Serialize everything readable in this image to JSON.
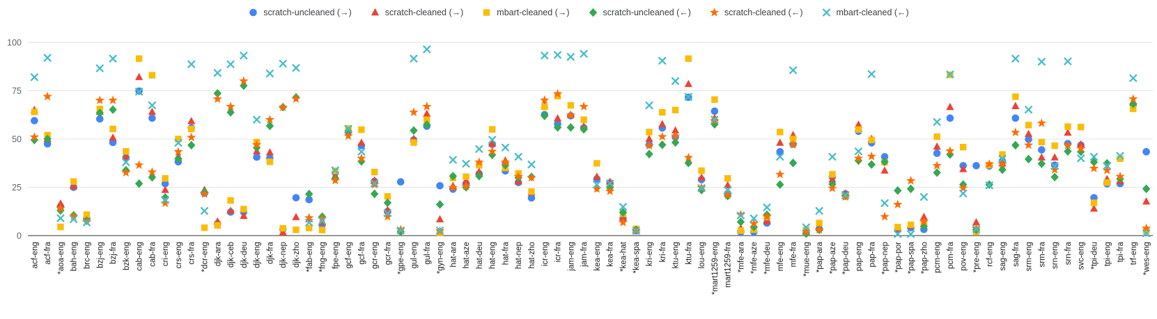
{
  "chart_data": {
    "type": "scatter",
    "title": "",
    "xlabel": "",
    "ylabel": "",
    "ylim": [
      0,
      100
    ],
    "yticks": [
      0,
      25,
      50,
      75,
      100
    ],
    "grid": true,
    "legend_position": "top",
    "categories": [
      "acf-eng",
      "acf-fra",
      "*aoa-eng",
      "bah-eng",
      "brc-eng",
      "bzj-eng",
      "bzj-fra",
      "bzk-eng",
      "cab-eng",
      "cab-fra",
      "cri-eng",
      "crs-eng",
      "crs-fra",
      "*dcr-eng",
      "djk-ara",
      "djk-ceb",
      "djk-deu",
      "djk-eng",
      "djk-fra",
      "djk-nep",
      "djk-zho",
      "*fab-eng",
      "*fng-eng",
      "fpe-eng",
      "gcf-eng",
      "gcf-fra",
      "gcr-eng",
      "gcr-fra",
      "*gpe-eng",
      "gul-eng",
      "gul-fra",
      "*gyn-eng",
      "hat-ara",
      "hat-aze",
      "hat-deu",
      "hat-eng",
      "hat-fra",
      "hat-nep",
      "hat-zho",
      "icr-eng",
      "icr-fra",
      "jam-eng",
      "jam-fra",
      "kea-eng",
      "kea-fra",
      "*kea-hat",
      "*kea-spa",
      "kri-eng",
      "kri-fra",
      "ktu-eng",
      "ktu-fra",
      "lou-eng",
      "*mart1259-eng",
      "mart1259-fra",
      "*mfe-ara",
      "*mfe-aze",
      "*mfe-deu",
      "mfe-eng",
      "mfe-fra",
      "*mue-eng",
      "*pap-ara",
      "*pap-aze",
      "*pap-deu",
      "pap-eng",
      "pap-fra",
      "*pap-nep",
      "*pap-por",
      "*pap-spa",
      "*pap-zho",
      "pcm-eng",
      "pcm-fra",
      "pov-eng",
      "*pre-eng",
      "rcf-eng",
      "sag-eng",
      "sag-fra",
      "srm-eng",
      "srm-fra",
      "srn-eng",
      "srn-fra",
      "svc-eng",
      "*tpi-deu",
      "tpi-eng",
      "tpi-fra",
      "trf-eng",
      "*wes-eng"
    ],
    "series": [
      {
        "name": "scratch-uncleaned (→)",
        "marker": "circle",
        "color": "#4285F4",
        "values": [
          59.5,
          47.5,
          15,
          25,
          9,
          60.4,
          48.2,
          40.4,
          74.8,
          60.8,
          26.9,
          38.2,
          55.8,
          21.9,
          6.2,
          12.2,
          12.2,
          40.6,
          40,
          3.2,
          19.6,
          18.6,
          5.6,
          32.6,
          53.8,
          46.6,
          28.1,
          12.5,
          27.8,
          49.5,
          56.6,
          25.8,
          24,
          27,
          32,
          47.2,
          33.5,
          27.5,
          19.5,
          62.6,
          57.8,
          62,
          55.8,
          29.3,
          27.2,
          8.9,
          2.5,
          47,
          55.7,
          51,
          71.6,
          29,
          64.4,
          21.8,
          1.8,
          1.9,
          6.5,
          43.4,
          47.3,
          1.5,
          3.4,
          30.4,
          21.6,
          54,
          48,
          40.8,
          2.9,
          4.1,
          3.2,
          42.6,
          60.8,
          36.2,
          36.2,
          36,
          38.6,
          60.8,
          49.8,
          44.4,
          36.5,
          47.6,
          46.8,
          19.6,
          26.8,
          26.9,
          67.8,
          43.4
        ]
      },
      {
        "name": "scratch-cleaned (→)",
        "marker": "triangle",
        "color": "#EA4335",
        "values": [
          65,
          50,
          16.5,
          25.5,
          9.5,
          64,
          50.6,
          40.8,
          82,
          64,
          23.6,
          41,
          59.2,
          23.6,
          7.2,
          12.8,
          10.1,
          43.6,
          43,
          1.7,
          9.5,
          8.5,
          7,
          31,
          54.5,
          48,
          28.5,
          13.2,
          2.5,
          50,
          63,
          8.4,
          25.7,
          28.2,
          33,
          47.5,
          38.8,
          28,
          22.3,
          67.3,
          60.6,
          62.5,
          56.5,
          30.4,
          27.8,
          9.2,
          3,
          50,
          57.6,
          54.4,
          78.4,
          30,
          60.8,
          26,
          3.8,
          5.5,
          7.4,
          48,
          52,
          2,
          4,
          29,
          21.8,
          57.4,
          50,
          33.6,
          3.5,
          5,
          9.6,
          46,
          66.5,
          34.4,
          6.8,
          36.8,
          37.4,
          67,
          52.6,
          40.4,
          40.4,
          53.2,
          47.2,
          13.9,
          29.2,
          28.1,
          68.5,
          17.6
        ]
      },
      {
        "name": "mbart-cleaned (→)",
        "marker": "square",
        "color": "#FBBC04",
        "values": [
          64,
          52,
          4.5,
          28,
          10.8,
          65.6,
          55.2,
          43.6,
          91.6,
          83,
          29.6,
          50,
          55.2,
          4.1,
          5.3,
          18.2,
          13.7,
          48.4,
          38.2,
          3.8,
          3,
          3.9,
          2.9,
          33.5,
          55.5,
          54.8,
          32.9,
          20.3,
          2.4,
          48.2,
          60,
          1.5,
          29.9,
          30.5,
          36.5,
          55,
          35,
          32.2,
          22.8,
          66.6,
          72.2,
          67.4,
          60,
          37.4,
          24.8,
          11.3,
          3.5,
          53.6,
          63.8,
          65,
          91.6,
          33.6,
          70.4,
          29.6,
          2.6,
          3.1,
          9.6,
          53.6,
          50,
          3,
          6.5,
          31.7,
          20.3,
          54.9,
          49.5,
          38,
          4.4,
          5.6,
          6.2,
          51.2,
          83.2,
          45.8,
          2,
          36.5,
          42,
          71.9,
          57.2,
          48.4,
          46.5,
          56.4,
          56.2,
          17,
          27.5,
          39.8,
          65.6,
          2.4
        ]
      },
      {
        "name": "scratch-uncleaned (←)",
        "marker": "diamond",
        "color": "#34A853",
        "values": [
          49.5,
          50,
          13,
          10.5,
          7.7,
          63.5,
          65.2,
          33.8,
          26.9,
          30.2,
          19.7,
          39.8,
          46.8,
          22.5,
          73.6,
          63.8,
          77.6,
          45.5,
          56.8,
          66.5,
          71.5,
          21.5,
          9.8,
          29.3,
          54,
          38.4,
          21.6,
          17,
          2,
          54.4,
          57.4,
          16.1,
          30.8,
          25,
          30.8,
          41.8,
          36.5,
          30,
          30.4,
          62,
          56,
          56,
          55,
          24.8,
          25,
          12,
          3,
          42.2,
          47,
          48.2,
          37.6,
          23.6,
          57.6,
          20.5,
          7.1,
          4.5,
          10.8,
          26.4,
          37.6,
          1,
          3,
          26.6,
          20.6,
          38.8,
          36.8,
          38.2,
          23.3,
          24.2,
          4.8,
          32.6,
          42,
          26.4,
          3,
          26.4,
          34.1,
          46.8,
          39.6,
          37.2,
          30.3,
          43.6,
          43.4,
          38,
          37.4,
          29.4,
          68.2,
          24.2
        ]
      },
      {
        "name": "scratch-cleaned (←)",
        "marker": "star",
        "color": "#FF6D01",
        "values": [
          51,
          72,
          14,
          10,
          7.2,
          70,
          70,
          32.6,
          36.5,
          32.9,
          16.8,
          43.4,
          50.8,
          21.5,
          70.7,
          66.8,
          80,
          47,
          60,
          66.4,
          70.8,
          9.2,
          8.8,
          28.5,
          51.6,
          40,
          26.4,
          9.8,
          3.1,
          63.8,
          66.8,
          2.4,
          24.8,
          25.5,
          38,
          43.6,
          38,
          30.5,
          30,
          70.1,
          73.4,
          62.3,
          66.8,
          24.2,
          23,
          6.8,
          2.5,
          46.5,
          51.2,
          51.5,
          40.4,
          24.8,
          59.5,
          21,
          10.8,
          6.2,
          9.8,
          31.7,
          47,
          2,
          3,
          24.5,
          20,
          40,
          41,
          9.8,
          16.1,
          28.4,
          7.2,
          36.2,
          43.8,
          24.6,
          3.6,
          37,
          37,
          53.4,
          46.8,
          58.2,
          34.1,
          46.8,
          45,
          34.8,
          33.8,
          30.6,
          70.7,
          3.8
        ]
      },
      {
        "name": "mbart-cleaned (←)",
        "marker": "x",
        "color": "#46BDC6",
        "values": [
          82,
          92,
          9,
          8.5,
          6.8,
          86.6,
          91.6,
          38,
          74.5,
          67.4,
          18.5,
          48,
          88.7,
          12.8,
          84.2,
          88.7,
          93.2,
          60,
          83.9,
          89,
          86.8,
          6.8,
          7.6,
          33.8,
          55.2,
          43.4,
          27,
          11.6,
          2.7,
          91.6,
          96.4,
          2.6,
          39.2,
          37.2,
          44.8,
          49.6,
          45.6,
          40.8,
          36.8,
          93.2,
          93.5,
          92.5,
          94.1,
          26.4,
          27,
          14.9,
          2.5,
          67.4,
          90.5,
          80,
          71.8,
          24.6,
          60,
          23.6,
          10.4,
          8.9,
          14.6,
          40.8,
          85.6,
          4.3,
          12.8,
          40.8,
          21,
          43.6,
          83.6,
          16.8,
          0.8,
          0.8,
          20,
          58.8,
          83.4,
          21.8,
          3.4,
          26,
          39.8,
          91.6,
          65.2,
          90,
          36,
          90.2,
          40,
          40.8,
          36.2,
          41.3,
          81.5,
          1.2
        ]
      }
    ],
    "axis_colors": {
      "gridline": "#e3e3e3",
      "baseline": "#757575",
      "y_label": "#5f6368",
      "x_label": "#1a1a1a"
    }
  }
}
